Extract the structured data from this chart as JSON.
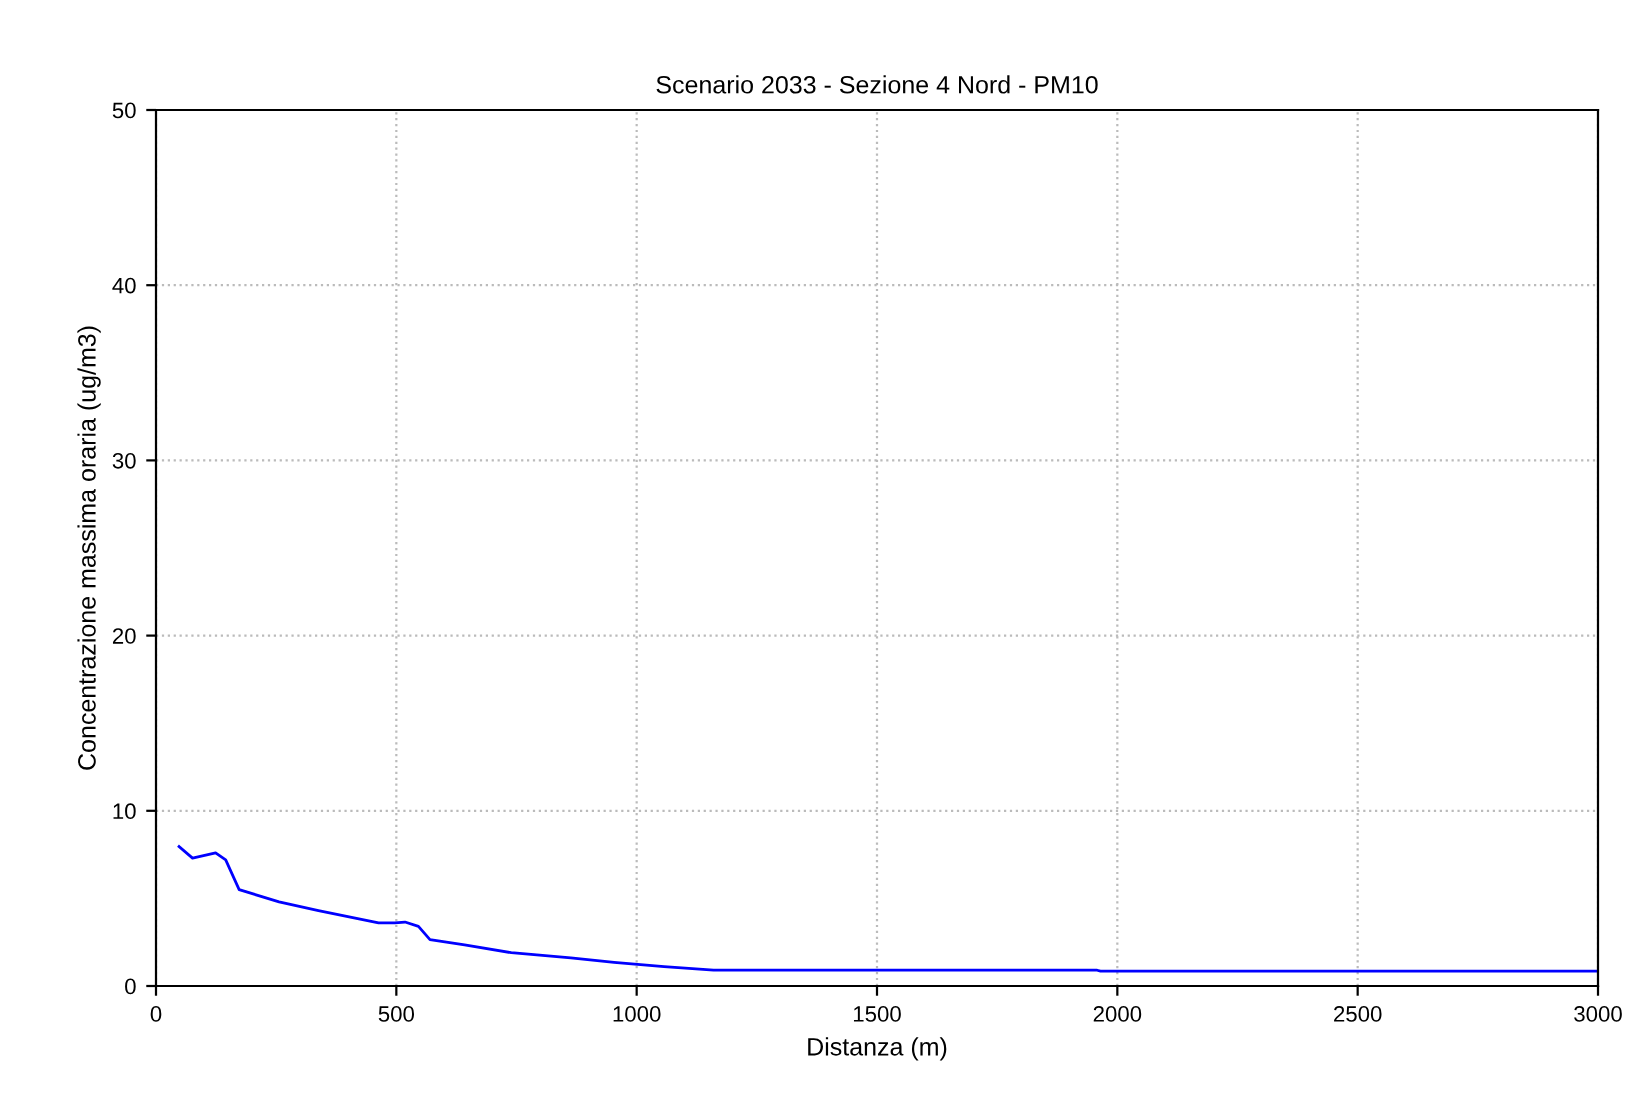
{
  "chart_data": {
    "type": "line",
    "title": "Scenario 2033 - Sezione 4 Nord - PM10",
    "xlabel": "Distanza (m)",
    "ylabel": "Concentrazione massima oraria (ug/m3)",
    "x": [
      48,
      76,
      124,
      145,
      173,
      256,
      338,
      463,
      497,
      518,
      546,
      570,
      642,
      739,
      863,
      953,
      1057,
      1160,
      1333,
      1958,
      1965,
      3000
    ],
    "series": [
      {
        "color": "#0000ff",
        "values": [
          7.96,
          7.3,
          7.6,
          7.2,
          5.5,
          4.8,
          4.3,
          3.6,
          3.6,
          3.65,
          3.4,
          2.65,
          2.35,
          1.9,
          1.6,
          1.35,
          1.1,
          0.9,
          0.9,
          0.9,
          0.85,
          0.85
        ]
      }
    ],
    "xlim": [
      0,
      3000
    ],
    "ylim": [
      0,
      50
    ],
    "xticks": [
      0,
      500,
      1000,
      1500,
      2000,
      2500,
      3000
    ],
    "yticks": [
      0,
      10,
      20,
      30,
      40,
      50
    ],
    "grid": true,
    "line_style": "solid",
    "marker": "none"
  }
}
